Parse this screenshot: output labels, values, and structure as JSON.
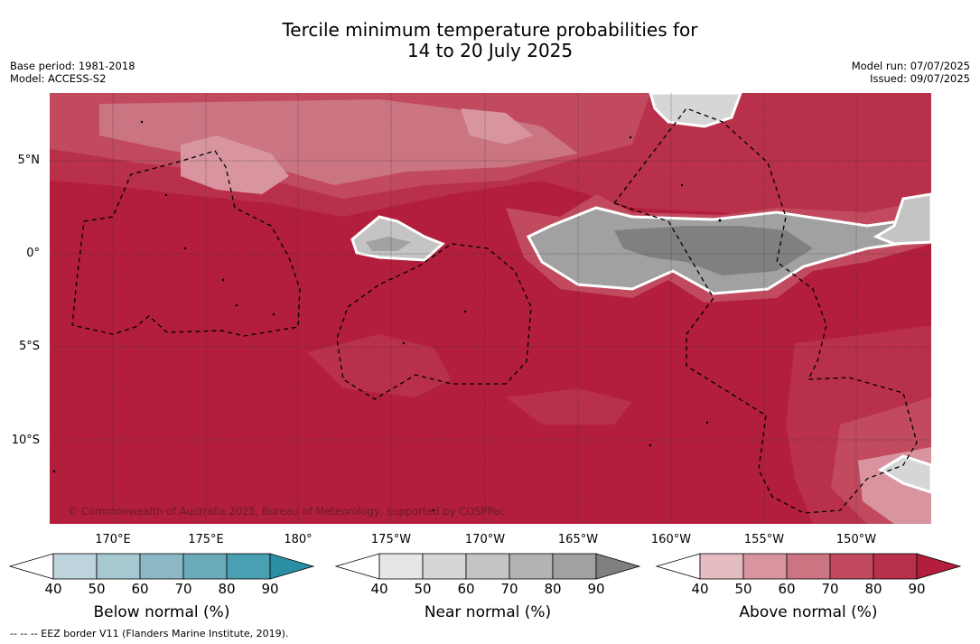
{
  "title_line1": "Tercile minimum temperature probabilities for",
  "title_line2": "14 to 20 July 2025",
  "base_period": "Base period: 1981-2018",
  "model": "Model: ACCESS-S2",
  "model_run": "Model run: 07/07/2025",
  "issued": "Issued: 09/07/2025",
  "lat_labels": [
    "5°N",
    "0°",
    "5°S",
    "10°S"
  ],
  "lon_labels": [
    "170°E",
    "175°E",
    "180°",
    "175°W",
    "170°W",
    "165°W",
    "160°W",
    "155°W",
    "150°W"
  ],
  "copyright": "© Commonwealth of Australia 2025, Bureau of Meteorology, supported by COSPPac",
  "colorbars": [
    {
      "title": "Below normal (%)",
      "ticks": [
        "40",
        "50",
        "60",
        "70",
        "80",
        "90"
      ],
      "colors": [
        "#ffffff",
        "#bdd4dc",
        "#a6c8d1",
        "#8cb8c6",
        "#6aaabb",
        "#49a0b2",
        "#2b8fa4"
      ]
    },
    {
      "title": "Near normal (%)",
      "ticks": [
        "40",
        "50",
        "60",
        "70",
        "80",
        "90"
      ],
      "colors": [
        "#ffffff",
        "#e6e6e6",
        "#d6d6d6",
        "#c4c4c4",
        "#b3b3b3",
        "#a1a1a1",
        "#808080"
      ]
    },
    {
      "title": "Above normal (%)",
      "ticks": [
        "40",
        "50",
        "60",
        "70",
        "80",
        "90"
      ],
      "colors": [
        "#ffffff",
        "#e4bcc2",
        "#d8959f",
        "#cb7482",
        "#c14a5f",
        "#b9304a",
        "#b21e3b"
      ]
    }
  ],
  "eez_note": "-- -- -- EEZ border V11 (Flanders Marine Institute, 2019).",
  "colors": {
    "above_90": "#b21e3b",
    "above_80": "#b9304a",
    "above_70": "#c14a5f",
    "above_60": "#cb7482",
    "above_50": "#d8959f",
    "near_70": "#a1a1a1",
    "near_80": "#808080"
  }
}
